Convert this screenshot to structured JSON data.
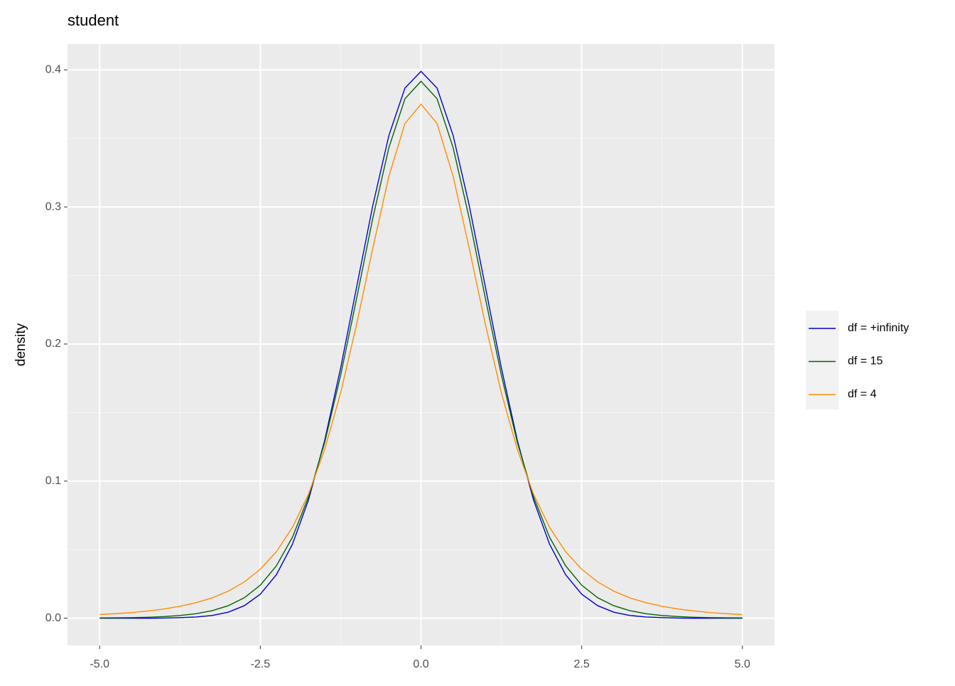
{
  "chart_data": {
    "type": "line",
    "title": "student",
    "y_label": "density",
    "x": [
      -5,
      -4.75,
      -4.5,
      -4.25,
      -4,
      -3.75,
      -3.5,
      -3.25,
      -3,
      -2.75,
      -2.5,
      -2.25,
      -2,
      -1.75,
      -1.5,
      -1.25,
      -1,
      -0.75,
      -0.5,
      -0.25,
      0,
      0.25,
      0.5,
      0.75,
      1,
      1.25,
      1.5,
      1.75,
      2,
      2.25,
      2.5,
      2.75,
      3,
      3.25,
      3.5,
      3.75,
      4,
      4.25,
      4.5,
      4.75,
      5
    ],
    "series": [
      {
        "name": "df = +infinity",
        "color": "#0000cd",
        "values": [
          0,
          0,
          0,
          0,
          0.0001,
          0.0004,
          0.0009,
          0.002,
          0.0044,
          0.0091,
          0.0175,
          0.0317,
          0.054,
          0.0863,
          0.1295,
          0.1826,
          0.242,
          0.3011,
          0.3521,
          0.3867,
          0.3989,
          0.3867,
          0.3521,
          0.3011,
          0.242,
          0.1826,
          0.1295,
          0.0863,
          0.054,
          0.0317,
          0.0175,
          0.0091,
          0.0044,
          0.002,
          0.0009,
          0.0004,
          0.0001,
          0,
          0,
          0,
          0
        ]
      },
      {
        "name": "df = 15",
        "color": "#006400",
        "values": [
          0.0002,
          0.0003,
          0.0004,
          0.0007,
          0.0012,
          0.002,
          0.0033,
          0.0055,
          0.0091,
          0.0149,
          0.0241,
          0.0382,
          0.0591,
          0.0886,
          0.128,
          0.1773,
          0.2337,
          0.2918,
          0.3432,
          0.3789,
          0.3917,
          0.3789,
          0.3432,
          0.2918,
          0.2337,
          0.1773,
          0.128,
          0.0886,
          0.0591,
          0.0382,
          0.0241,
          0.0149,
          0.0091,
          0.0055,
          0.0033,
          0.002,
          0.0012,
          0.0007,
          0.0004,
          0.0003,
          0.0002
        ]
      },
      {
        "name": "df = 4",
        "color": "#ff8c00",
        "values": [
          0.0027,
          0.0033,
          0.0041,
          0.0053,
          0.0067,
          0.0087,
          0.0113,
          0.0148,
          0.0197,
          0.0264,
          0.0357,
          0.0485,
          0.0663,
          0.0905,
          0.1229,
          0.1644,
          0.2147,
          0.2699,
          0.3223,
          0.3608,
          0.375,
          0.3608,
          0.3223,
          0.2699,
          0.2147,
          0.1644,
          0.1229,
          0.0905,
          0.0663,
          0.0485,
          0.0357,
          0.0264,
          0.0197,
          0.0148,
          0.0113,
          0.0087,
          0.0067,
          0.0053,
          0.0041,
          0.0033,
          0.0027
        ]
      }
    ],
    "xlim": [
      -5.5,
      5.5
    ],
    "xticks": [
      {
        "value": -5,
        "label": "-5.0"
      },
      {
        "value": -2.5,
        "label": "-2.5"
      },
      {
        "value": 0,
        "label": "0.0"
      },
      {
        "value": 2.5,
        "label": "2.5"
      },
      {
        "value": 5,
        "label": "5.0"
      }
    ],
    "ylim": [
      -0.0199,
      0.4188
    ],
    "yticks": [
      {
        "value": 0,
        "label": "0.0"
      },
      0.1,
      0.2,
      0.3,
      0.4
    ],
    "grid": true,
    "legend": "right"
  }
}
